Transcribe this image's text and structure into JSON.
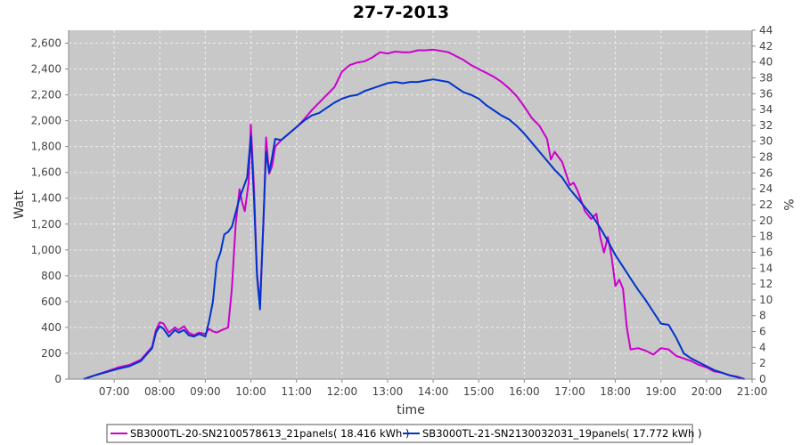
{
  "chart_data": {
    "type": "line",
    "title": "27-7-2013",
    "xlabel": "time",
    "ylabel": "Watt",
    "y2label": "%",
    "grid": true,
    "legend_position": "bottom",
    "colors": {
      "plot_bg": "#c8c8c8",
      "grid": "#eeeeee"
    },
    "xlim": [
      "06:00",
      "21:00"
    ],
    "ylim": [
      0,
      2700
    ],
    "y2lim": [
      0,
      44
    ],
    "x_ticks": [
      "07:00",
      "08:00",
      "09:00",
      "10:00",
      "11:00",
      "12:00",
      "13:00",
      "14:00",
      "15:00",
      "16:00",
      "17:00",
      "18:00",
      "19:00",
      "20:00",
      "21:00"
    ],
    "y_ticks": [
      "0",
      "200",
      "400",
      "600",
      "800",
      "1,000",
      "1,200",
      "1,400",
      "1,600",
      "1,800",
      "2,000",
      "2,200",
      "2,400",
      "2,600"
    ],
    "y2_ticks": [
      "0",
      "2",
      "4",
      "6",
      "8",
      "10",
      "12",
      "14",
      "16",
      "18",
      "20",
      "22",
      "24",
      "26",
      "28",
      "30",
      "32",
      "34",
      "36",
      "38",
      "40",
      "42",
      "44"
    ],
    "series": [
      {
        "name": "SB3000TL-20-SN2100578613_21panels( 18.416 kWh )",
        "color": "#cc00cc",
        "points": [
          [
            "06:20",
            0
          ],
          [
            "06:35",
            30
          ],
          [
            "06:50",
            60
          ],
          [
            "07:05",
            90
          ],
          [
            "07:20",
            110
          ],
          [
            "07:35",
            150
          ],
          [
            "07:50",
            250
          ],
          [
            "07:55",
            380
          ],
          [
            "08:00",
            440
          ],
          [
            "08:05",
            430
          ],
          [
            "08:12",
            360
          ],
          [
            "08:20",
            400
          ],
          [
            "08:25",
            380
          ],
          [
            "08:32",
            410
          ],
          [
            "08:38",
            360
          ],
          [
            "08:45",
            340
          ],
          [
            "08:52",
            360
          ],
          [
            "09:00",
            350
          ],
          [
            "09:05",
            390
          ],
          [
            "09:10",
            370
          ],
          [
            "09:15",
            360
          ],
          [
            "09:22",
            380
          ],
          [
            "09:30",
            400
          ],
          [
            "09:35",
            700
          ],
          [
            "09:40",
            1200
          ],
          [
            "09:45",
            1470
          ],
          [
            "09:48",
            1380
          ],
          [
            "09:52",
            1300
          ],
          [
            "09:57",
            1520
          ],
          [
            "10:00",
            1970
          ],
          [
            "10:04",
            1500
          ],
          [
            "10:08",
            820
          ],
          [
            "10:12",
            580
          ],
          [
            "10:17",
            1280
          ],
          [
            "10:20",
            1870
          ],
          [
            "10:24",
            1590
          ],
          [
            "10:28",
            1650
          ],
          [
            "10:32",
            1800
          ],
          [
            "10:40",
            1850
          ],
          [
            "10:50",
            1900
          ],
          [
            "11:00",
            1950
          ],
          [
            "11:10",
            2010
          ],
          [
            "11:20",
            2080
          ],
          [
            "11:30",
            2140
          ],
          [
            "11:40",
            2200
          ],
          [
            "11:50",
            2260
          ],
          [
            "12:00",
            2380
          ],
          [
            "12:10",
            2430
          ],
          [
            "12:20",
            2450
          ],
          [
            "12:30",
            2460
          ],
          [
            "12:40",
            2490
          ],
          [
            "12:50",
            2530
          ],
          [
            "13:00",
            2520
          ],
          [
            "13:10",
            2535
          ],
          [
            "13:20",
            2530
          ],
          [
            "13:30",
            2530
          ],
          [
            "13:40",
            2545
          ],
          [
            "13:50",
            2545
          ],
          [
            "14:00",
            2550
          ],
          [
            "14:10",
            2540
          ],
          [
            "14:20",
            2530
          ],
          [
            "14:30",
            2500
          ],
          [
            "14:40",
            2470
          ],
          [
            "14:50",
            2430
          ],
          [
            "15:00",
            2400
          ],
          [
            "15:10",
            2370
          ],
          [
            "15:20",
            2340
          ],
          [
            "15:30",
            2300
          ],
          [
            "15:40",
            2250
          ],
          [
            "15:50",
            2190
          ],
          [
            "16:00",
            2110
          ],
          [
            "16:10",
            2020
          ],
          [
            "16:20",
            1960
          ],
          [
            "16:30",
            1860
          ],
          [
            "16:35",
            1700
          ],
          [
            "16:40",
            1760
          ],
          [
            "16:50",
            1680
          ],
          [
            "17:00",
            1500
          ],
          [
            "17:05",
            1520
          ],
          [
            "17:10",
            1460
          ],
          [
            "17:20",
            1300
          ],
          [
            "17:28",
            1240
          ],
          [
            "17:35",
            1280
          ],
          [
            "17:40",
            1100
          ],
          [
            "17:45",
            980
          ],
          [
            "17:50",
            1100
          ],
          [
            "17:55",
            950
          ],
          [
            "18:00",
            720
          ],
          [
            "18:05",
            770
          ],
          [
            "18:10",
            700
          ],
          [
            "18:15",
            400
          ],
          [
            "18:20",
            230
          ],
          [
            "18:30",
            240
          ],
          [
            "18:40",
            220
          ],
          [
            "18:50",
            190
          ],
          [
            "19:00",
            240
          ],
          [
            "19:10",
            230
          ],
          [
            "19:20",
            180
          ],
          [
            "19:30",
            160
          ],
          [
            "19:40",
            140
          ],
          [
            "19:50",
            110
          ],
          [
            "20:00",
            90
          ],
          [
            "20:10",
            60
          ],
          [
            "20:20",
            50
          ],
          [
            "20:30",
            30
          ],
          [
            "20:40",
            20
          ],
          [
            "20:50",
            0
          ]
        ]
      },
      {
        "name": "SB3000TL-21-SN2130032031_19panels( 17.772 kWh )",
        "color": "#0033cc",
        "points": [
          [
            "06:20",
            0
          ],
          [
            "06:35",
            30
          ],
          [
            "06:50",
            55
          ],
          [
            "07:05",
            80
          ],
          [
            "07:20",
            100
          ],
          [
            "07:35",
            140
          ],
          [
            "07:50",
            240
          ],
          [
            "07:55",
            360
          ],
          [
            "08:00",
            410
          ],
          [
            "08:05",
            390
          ],
          [
            "08:12",
            330
          ],
          [
            "08:20",
            380
          ],
          [
            "08:25",
            360
          ],
          [
            "08:32",
            380
          ],
          [
            "08:38",
            340
          ],
          [
            "08:45",
            330
          ],
          [
            "08:52",
            350
          ],
          [
            "09:00",
            330
          ],
          [
            "09:05",
            450
          ],
          [
            "09:10",
            600
          ],
          [
            "09:15",
            900
          ],
          [
            "09:20",
            980
          ],
          [
            "09:25",
            1120
          ],
          [
            "09:30",
            1140
          ],
          [
            "09:35",
            1180
          ],
          [
            "09:40",
            1290
          ],
          [
            "09:45",
            1400
          ],
          [
            "09:50",
            1480
          ],
          [
            "09:55",
            1560
          ],
          [
            "10:00",
            1880
          ],
          [
            "10:04",
            1420
          ],
          [
            "10:08",
            800
          ],
          [
            "10:12",
            540
          ],
          [
            "10:17",
            1300
          ],
          [
            "10:20",
            1760
          ],
          [
            "10:24",
            1600
          ],
          [
            "10:28",
            1720
          ],
          [
            "10:32",
            1860
          ],
          [
            "10:40",
            1850
          ],
          [
            "10:50",
            1900
          ],
          [
            "11:00",
            1950
          ],
          [
            "11:10",
            2000
          ],
          [
            "11:20",
            2040
          ],
          [
            "11:30",
            2060
          ],
          [
            "11:40",
            2100
          ],
          [
            "11:50",
            2140
          ],
          [
            "12:00",
            2170
          ],
          [
            "12:10",
            2190
          ],
          [
            "12:20",
            2200
          ],
          [
            "12:30",
            2230
          ],
          [
            "12:40",
            2250
          ],
          [
            "12:50",
            2270
          ],
          [
            "13:00",
            2290
          ],
          [
            "13:10",
            2300
          ],
          [
            "13:20",
            2290
          ],
          [
            "13:30",
            2300
          ],
          [
            "13:40",
            2300
          ],
          [
            "13:50",
            2310
          ],
          [
            "14:00",
            2320
          ],
          [
            "14:10",
            2310
          ],
          [
            "14:20",
            2300
          ],
          [
            "14:30",
            2260
          ],
          [
            "14:40",
            2220
          ],
          [
            "14:50",
            2200
          ],
          [
            "15:00",
            2170
          ],
          [
            "15:10",
            2120
          ],
          [
            "15:20",
            2080
          ],
          [
            "15:30",
            2040
          ],
          [
            "15:40",
            2010
          ],
          [
            "15:50",
            1960
          ],
          [
            "16:00",
            1900
          ],
          [
            "16:10",
            1830
          ],
          [
            "16:20",
            1760
          ],
          [
            "16:30",
            1690
          ],
          [
            "16:40",
            1620
          ],
          [
            "16:50",
            1560
          ],
          [
            "17:00",
            1470
          ],
          [
            "17:10",
            1400
          ],
          [
            "17:20",
            1330
          ],
          [
            "17:30",
            1260
          ],
          [
            "17:40",
            1170
          ],
          [
            "17:50",
            1070
          ],
          [
            "18:00",
            960
          ],
          [
            "18:10",
            870
          ],
          [
            "18:20",
            780
          ],
          [
            "18:30",
            690
          ],
          [
            "18:40",
            610
          ],
          [
            "18:50",
            520
          ],
          [
            "19:00",
            430
          ],
          [
            "19:10",
            420
          ],
          [
            "19:20",
            320
          ],
          [
            "19:30",
            200
          ],
          [
            "19:40",
            160
          ],
          [
            "19:50",
            130
          ],
          [
            "20:00",
            100
          ],
          [
            "20:10",
            70
          ],
          [
            "20:20",
            50
          ],
          [
            "20:30",
            30
          ],
          [
            "20:40",
            15
          ],
          [
            "20:50",
            0
          ]
        ]
      }
    ]
  }
}
